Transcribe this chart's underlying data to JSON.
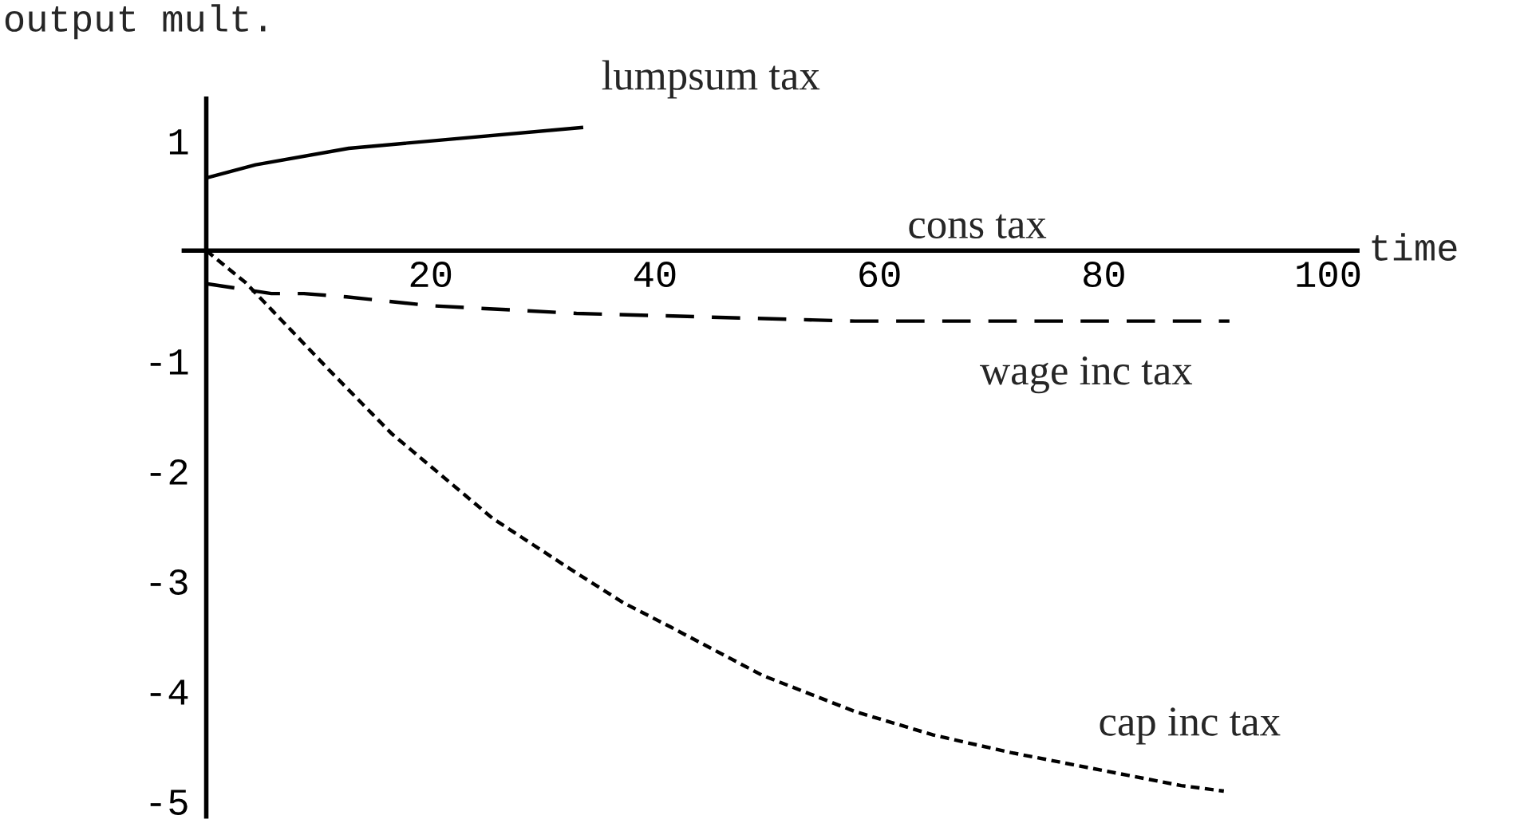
{
  "chart_data": {
    "type": "line",
    "xlabel": "time",
    "ylabel": "output mult.",
    "xlim": [
      -2,
      102.6
    ],
    "ylim": [
      -5.14,
      1.38
    ],
    "xticks": [
      20,
      40,
      60,
      80,
      100
    ],
    "yticks": [
      -5,
      -4,
      -3,
      -2,
      -1,
      1
    ],
    "grid": false,
    "legend": false,
    "series": [
      {
        "color": "#000000",
        "line_style": "solid",
        "x": [
          0,
          4.4,
          12.7,
          33.6
        ],
        "values": [
          0.66,
          0.78,
          0.93,
          1.12
        ]
      },
      {
        "color": "#000000",
        "line_style": "dashed",
        "x": [
          0,
          5.8,
          8.7,
          12.5,
          20,
          33,
          57.8,
          91.2
        ],
        "values": [
          -0.3,
          -0.39,
          -0.39,
          -0.42,
          -0.5,
          -0.57,
          -0.64,
          -0.64
        ]
      },
      {
        "color": "#000000",
        "line_style": "dotted",
        "x": [
          0,
          3.5,
          11.1,
          16.5,
          25.5,
          32.4,
          37.2,
          41.4,
          49.6,
          57.9,
          64.8,
          71.7,
          86.9,
          90.7
        ],
        "values": [
          0,
          -0.29,
          -1.1,
          -1.66,
          -2.43,
          -2.89,
          -3.2,
          -3.42,
          -3.86,
          -4.19,
          -4.4,
          -4.56,
          -4.86,
          -4.91
        ]
      }
    ],
    "annotations": [
      "lumpsum tax",
      "cons tax",
      "wage inc tax",
      "cap inc tax"
    ]
  }
}
